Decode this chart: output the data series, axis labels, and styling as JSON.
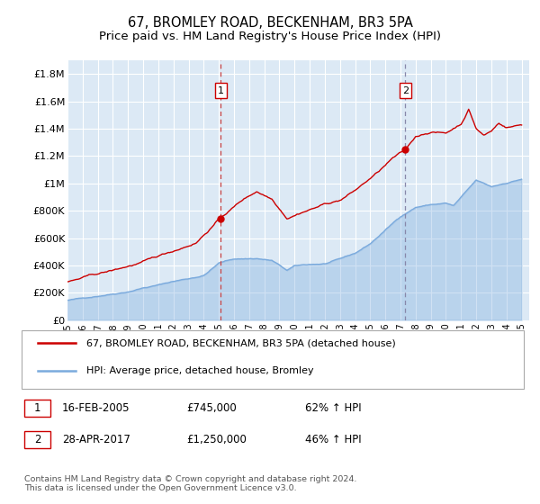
{
  "title": "67, BROMLEY ROAD, BECKENHAM, BR3 5PA",
  "subtitle": "Price paid vs. HM Land Registry's House Price Index (HPI)",
  "background_color": "#ffffff",
  "plot_bg_color": "#dce9f5",
  "grid_color": "#ffffff",
  "red_line_color": "#cc0000",
  "blue_line_color": "#7aaadd",
  "vline1_color": "#cc4444",
  "vline2_color": "#8888aa",
  "ylim": [
    0,
    1900000
  ],
  "yticks": [
    0,
    200000,
    400000,
    600000,
    800000,
    1000000,
    1200000,
    1400000,
    1600000,
    1800000
  ],
  "ytick_labels": [
    "£0",
    "£200K",
    "£400K",
    "£600K",
    "£800K",
    "£1M",
    "£1.2M",
    "£1.4M",
    "£1.6M",
    "£1.8M"
  ],
  "xtick_years": [
    "1995",
    "1996",
    "1997",
    "1998",
    "1999",
    "2000",
    "2001",
    "2002",
    "2003",
    "2004",
    "2005",
    "2006",
    "2007",
    "2008",
    "2009",
    "2010",
    "2011",
    "2012",
    "2013",
    "2014",
    "2015",
    "2016",
    "2017",
    "2018",
    "2019",
    "2020",
    "2021",
    "2022",
    "2023",
    "2024",
    "2025"
  ],
  "sale1_date": 2005.12,
  "sale1_price": 745000,
  "sale2_date": 2017.32,
  "sale2_price": 1250000,
  "legend_line1": "67, BROMLEY ROAD, BECKENHAM, BR3 5PA (detached house)",
  "legend_line2": "HPI: Average price, detached house, Bromley",
  "annotation1": [
    "1",
    "16-FEB-2005",
    "£745,000",
    "62% ↑ HPI"
  ],
  "annotation2": [
    "2",
    "28-APR-2017",
    "£1,250,000",
    "46% ↑ HPI"
  ],
  "footer": "Contains HM Land Registry data © Crown copyright and database right 2024.\nThis data is licensed under the Open Government Licence v3.0.",
  "title_fontsize": 10.5,
  "subtitle_fontsize": 9.5
}
